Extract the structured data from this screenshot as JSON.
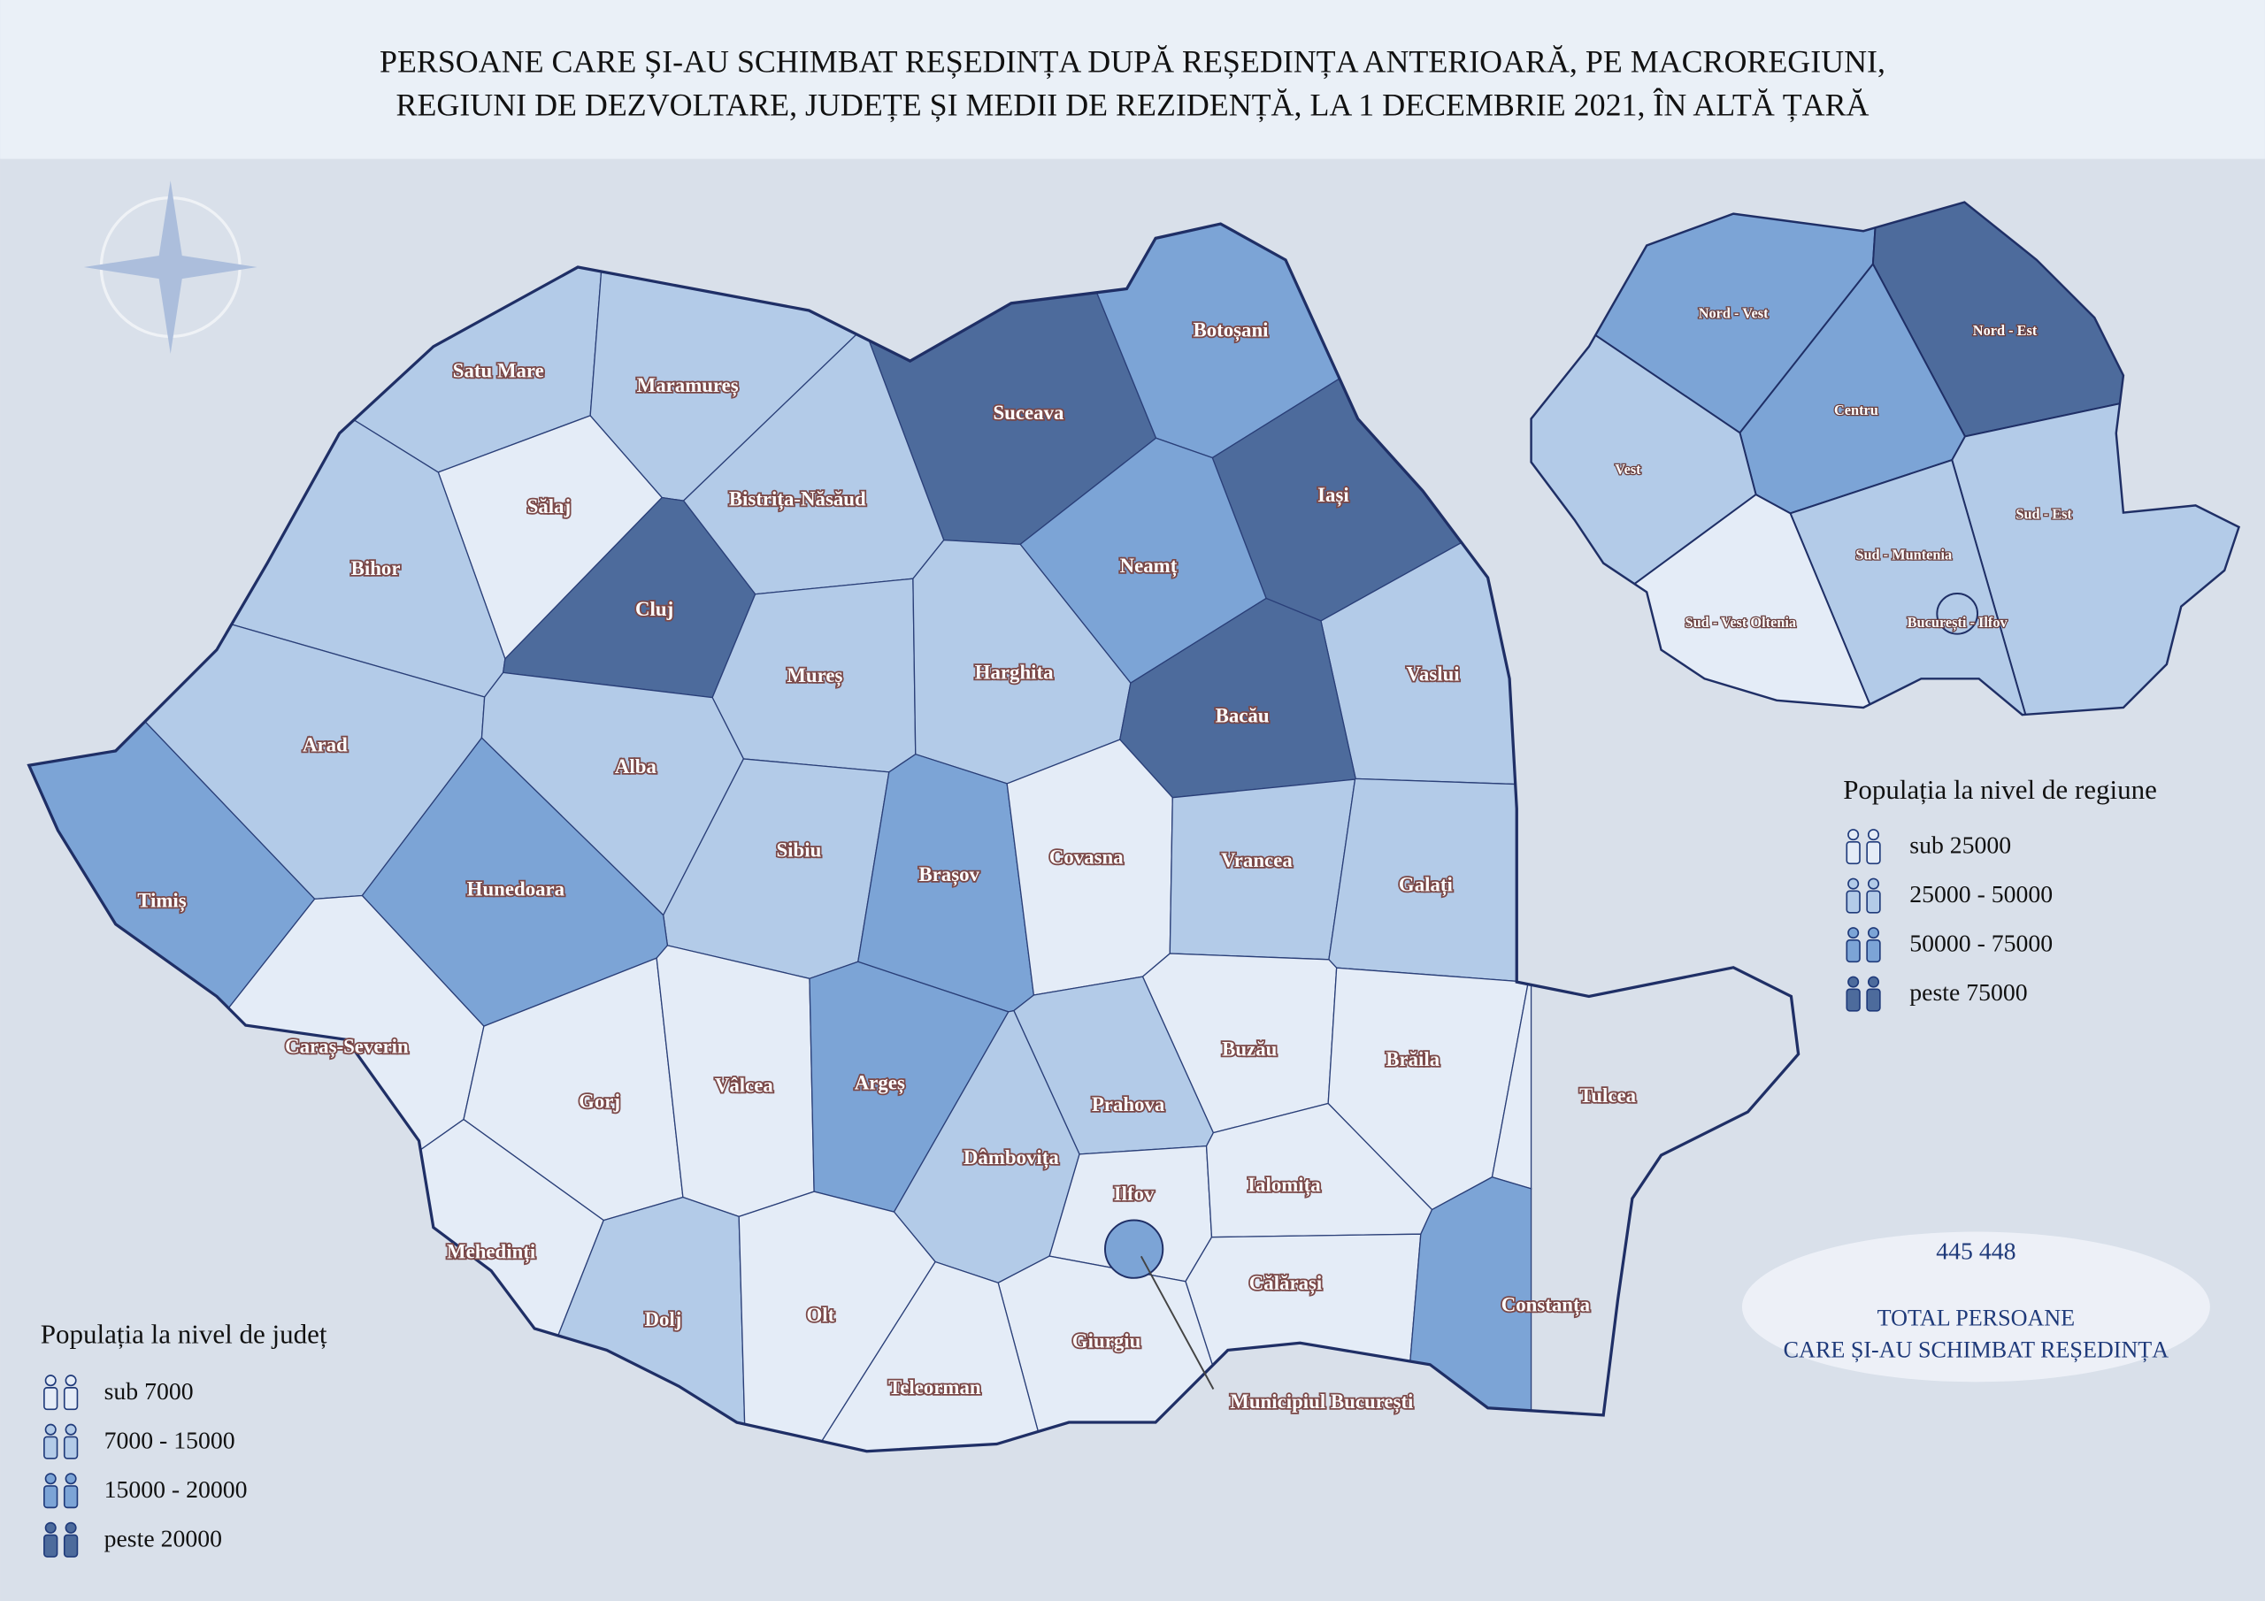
{
  "title": [
    "PERSOANE CARE ȘI-AU SCHIMBAT REȘEDINȚA DUPĂ REȘEDINȚA ANTERIOARĂ, PE MACROREGIUNI,",
    "REGIUNI DE DEZVOLTARE, JUDEȚE ȘI MEDII DE REZIDENȚĂ, LA 1 DECEMBRIE 2021, ÎN ALTĂ ȚARĂ"
  ],
  "county_legend": {
    "title": "Populația la nivel de județ",
    "items": [
      {
        "label": "sub 7000",
        "color": "#e4ecf7"
      },
      {
        "label": "7000 - 15000",
        "color": "#b3cbe8"
      },
      {
        "label": "15000 - 20000",
        "color": "#7ca4d6"
      },
      {
        "label": "peste 20000",
        "color": "#4d6b9c"
      }
    ]
  },
  "region_legend": {
    "title": "Populația la nivel de regiune",
    "items": [
      {
        "label": "sub 25000",
        "color": "#e4ecf7"
      },
      {
        "label": "25000 - 50000",
        "color": "#b3cbe8"
      },
      {
        "label": "50000 - 75000",
        "color": "#7ca4d6"
      },
      {
        "label": "peste 75000",
        "color": "#4d6b9c"
      }
    ]
  },
  "counties": [
    {
      "name": "Satu Mare",
      "level": 1
    },
    {
      "name": "Maramureș",
      "level": 1
    },
    {
      "name": "Suceava",
      "level": 3
    },
    {
      "name": "Botoșani",
      "level": 2
    },
    {
      "name": "Sălaj",
      "level": 0
    },
    {
      "name": "Bistrița-Năsăud",
      "level": 1
    },
    {
      "name": "Iași",
      "level": 3
    },
    {
      "name": "Bihor",
      "level": 1
    },
    {
      "name": "Cluj",
      "level": 3
    },
    {
      "name": "Neamț",
      "level": 2
    },
    {
      "name": "Mureș",
      "level": 1
    },
    {
      "name": "Harghita",
      "level": 1
    },
    {
      "name": "Vaslui",
      "level": 1
    },
    {
      "name": "Bacău",
      "level": 3
    },
    {
      "name": "Arad",
      "level": 1
    },
    {
      "name": "Alba",
      "level": 1
    },
    {
      "name": "Sibiu",
      "level": 1
    },
    {
      "name": "Brașov",
      "level": 2
    },
    {
      "name": "Covasna",
      "level": 0
    },
    {
      "name": "Vrancea",
      "level": 1
    },
    {
      "name": "Galați",
      "level": 1
    },
    {
      "name": "Timiș",
      "level": 2
    },
    {
      "name": "Hunedoara",
      "level": 2
    },
    {
      "name": "Caraș-Severin",
      "level": 0
    },
    {
      "name": "Buzău",
      "level": 0
    },
    {
      "name": "Brăila",
      "level": 0
    },
    {
      "name": "Tulcea",
      "level": 0
    },
    {
      "name": "Gorj",
      "level": 0
    },
    {
      "name": "Vâlcea",
      "level": 0
    },
    {
      "name": "Argeș",
      "level": 2
    },
    {
      "name": "Prahova",
      "level": 1
    },
    {
      "name": "Dâmbovița",
      "level": 1
    },
    {
      "name": "Ilfov",
      "level": 0
    },
    {
      "name": "Ialomița",
      "level": 0
    },
    {
      "name": "Mehedinți",
      "level": 0
    },
    {
      "name": "Călărași",
      "level": 0
    },
    {
      "name": "Constanța",
      "level": 2
    },
    {
      "name": "Dolj",
      "level": 1
    },
    {
      "name": "Olt",
      "level": 0
    },
    {
      "name": "Giurgiu",
      "level": 0
    },
    {
      "name": "Teleorman",
      "level": 0
    }
  ],
  "municipiu": {
    "name": "Municipiul București",
    "level": 2
  },
  "regions": [
    {
      "name": "Nord - Vest",
      "level": 2
    },
    {
      "name": "Nord - Est",
      "level": 3
    },
    {
      "name": "Centru",
      "level": 2
    },
    {
      "name": "Vest",
      "level": 1
    },
    {
      "name": "Sud - Est",
      "level": 1
    },
    {
      "name": "Sud - Muntenia",
      "level": 1
    },
    {
      "name": "Sud - Vest Oltenia",
      "level": 0
    },
    {
      "name": "București - Ilfov",
      "level": 1
    }
  ],
  "total": {
    "value": "445 448",
    "label": [
      "TOTAL PERSOANE",
      "CARE ȘI-AU SCHIMBAT REȘEDINȚA"
    ]
  }
}
